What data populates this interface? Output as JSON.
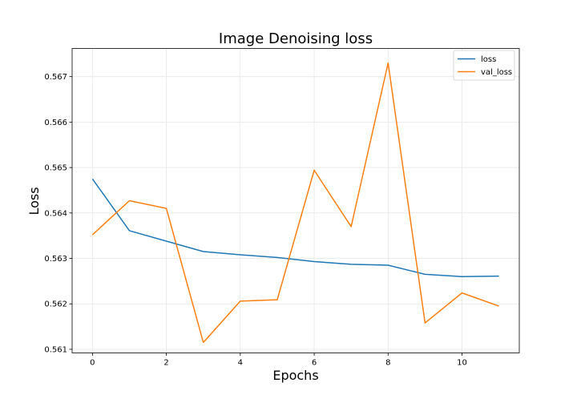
{
  "chart_data": {
    "type": "line",
    "title": "Image Denoising loss",
    "xlabel": "Epochs",
    "ylabel": "Loss",
    "xlim": [
      -0.55,
      11.55
    ],
    "ylim": [
      0.56092,
      0.56762
    ],
    "xticks": [
      0,
      2,
      4,
      6,
      8,
      10
    ],
    "yticks": [
      0.561,
      0.562,
      0.563,
      0.564,
      0.565,
      0.566,
      0.567
    ],
    "grid": true,
    "legend_position": "top-right",
    "x": [
      0,
      1,
      2,
      3,
      4,
      5,
      6,
      7,
      8,
      9,
      10,
      11
    ],
    "series": [
      {
        "name": "loss",
        "color": "#1f77b4",
        "values": [
          0.56475,
          0.56361,
          0.56338,
          0.56315,
          0.56308,
          0.56302,
          0.56293,
          0.56287,
          0.56285,
          0.56265,
          0.5626,
          0.56261
        ]
      },
      {
        "name": "val_loss",
        "color": "#ff7f0e",
        "values": [
          0.56352,
          0.56427,
          0.5641,
          0.56115,
          0.56206,
          0.56209,
          0.56494,
          0.5637,
          0.5673,
          0.56158,
          0.56224,
          0.56195
        ]
      }
    ]
  }
}
